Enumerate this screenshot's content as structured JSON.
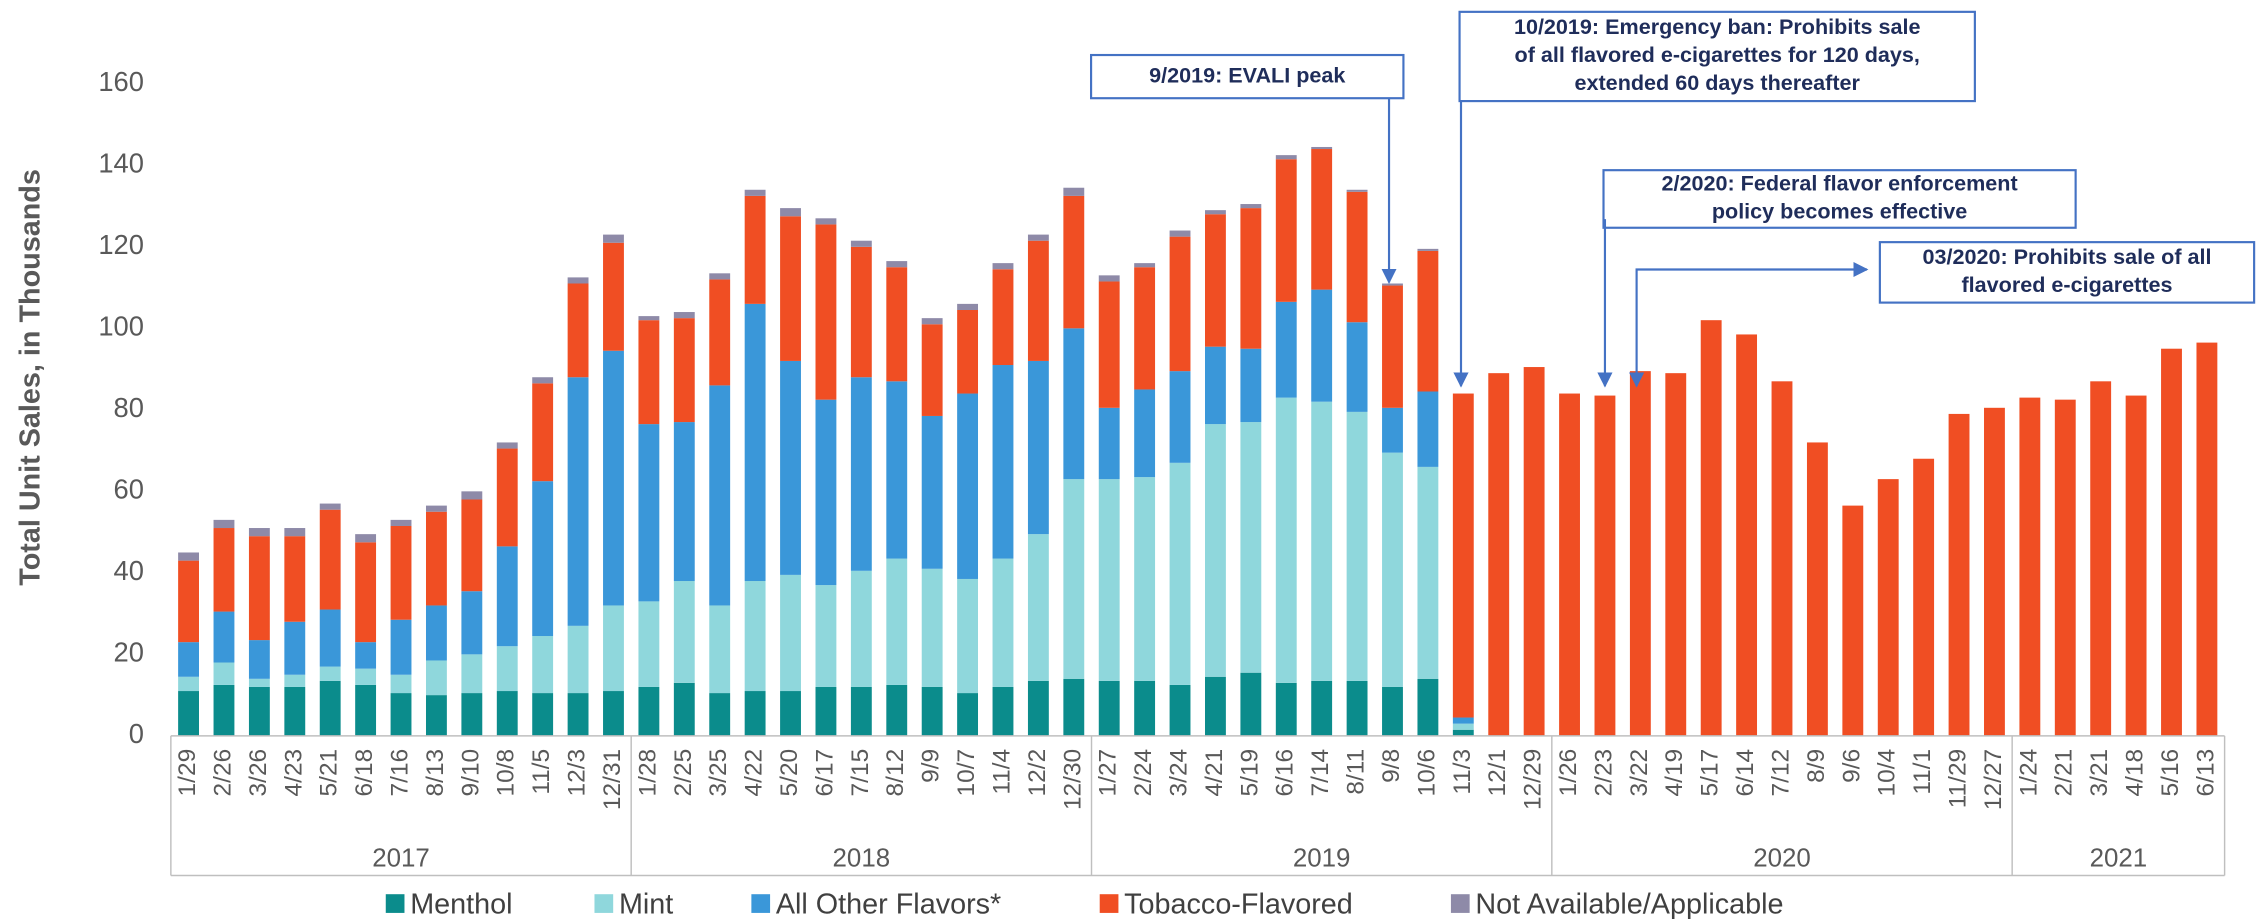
{
  "chart_data": {
    "type": "stacked_bar",
    "y_label": "Total Unit Sales, in Thousands",
    "categories": [
      "1/29",
      "2/26",
      "3/26",
      "4/23",
      "5/21",
      "6/18",
      "7/16",
      "8/13",
      "9/10",
      "10/8",
      "11/5",
      "12/3",
      "12/31",
      "1/28",
      "2/25",
      "3/25",
      "4/22",
      "5/20",
      "6/17",
      "7/15",
      "8/12",
      "9/9",
      "10/7",
      "11/4",
      "12/2",
      "12/30",
      "1/27",
      "2/24",
      "3/24",
      "4/21",
      "5/19",
      "6/16",
      "7/14",
      "8/11",
      "9/8",
      "10/6",
      "11/3",
      "12/1",
      "12/29",
      "1/26",
      "2/23",
      "3/22",
      "4/19",
      "5/17",
      "6/14",
      "7/12",
      "8/9",
      "9/6",
      "10/4",
      "11/1",
      "11/29",
      "12/27",
      "1/24",
      "2/21",
      "3/21",
      "4/18",
      "5/16",
      "6/13"
    ],
    "groups": [
      "2017",
      "2018",
      "2019",
      "2020",
      "2021"
    ],
    "series": [
      {
        "name": "Menthol",
        "color": "#0b8c8c",
        "values": [
          11,
          12.5,
          12,
          12,
          13.5,
          12.5,
          10.5,
          10,
          10.5,
          11,
          10.5,
          10.5,
          11,
          12,
          13,
          10.5,
          11,
          11,
          12,
          12,
          12.5,
          12,
          10.5,
          12,
          13.5,
          14,
          13.5,
          13.5,
          12.5,
          14.5,
          15.5,
          13,
          13.5,
          13.5,
          12,
          14,
          1.5,
          null,
          null,
          null,
          null,
          null,
          null,
          null,
          null,
          null,
          null,
          null,
          null,
          null,
          null,
          null,
          null,
          null,
          null,
          null,
          null,
          null
        ]
      },
      {
        "name": "Mint",
        "color": "#8fd7dc",
        "values": [
          3.5,
          5.5,
          2,
          3,
          3.5,
          4,
          4.5,
          8.5,
          9.5,
          11,
          14,
          16.5,
          21,
          21,
          25,
          21.5,
          27,
          28.5,
          25,
          28.5,
          31,
          29,
          28,
          31.5,
          36,
          49,
          49.5,
          50,
          54.5,
          62,
          61.5,
          70,
          68.5,
          66,
          57.5,
          52,
          1.5,
          null,
          null,
          null,
          null,
          null,
          null,
          null,
          null,
          null,
          null,
          null,
          null,
          null,
          null,
          null,
          null,
          null,
          null,
          null,
          null,
          null
        ]
      },
      {
        "name": "All Other Flavors*",
        "color": "#3a97d9",
        "values": [
          8.5,
          12.5,
          9.5,
          13,
          14,
          6.5,
          13.5,
          13.5,
          15.5,
          24.5,
          38,
          61,
          62.5,
          43.5,
          39,
          54,
          68,
          52.5,
          45.5,
          47.5,
          43.5,
          37.5,
          45.5,
          47.5,
          42.5,
          37,
          17.5,
          21.5,
          22.5,
          19,
          18,
          23.5,
          27.5,
          22,
          11,
          18.5,
          1.5,
          null,
          null,
          null,
          null,
          null,
          null,
          null,
          null,
          null,
          null,
          null,
          null,
          null,
          null,
          null,
          null,
          null,
          null,
          null,
          null,
          null
        ]
      },
      {
        "name": "Tobacco-Flavored",
        "color": "#f04e23",
        "values": [
          20,
          20.5,
          25.5,
          21,
          24.5,
          24.5,
          23,
          23,
          22.5,
          24,
          24,
          23,
          26.5,
          25.5,
          25.5,
          26,
          26.5,
          35.5,
          43,
          32,
          28,
          22.5,
          20.5,
          23.5,
          29.5,
          32.5,
          31,
          30,
          33,
          32.5,
          34.5,
          35,
          34.5,
          32,
          30,
          34.5,
          79.5,
          89,
          90.5,
          84,
          83.5,
          89.5,
          89,
          102,
          98.5,
          87,
          72,
          56.5,
          63,
          68,
          79,
          80.5,
          83,
          82.5,
          87,
          83.5,
          95,
          96.5
        ]
      },
      {
        "name": "Not Available/Applicable",
        "color": "#8e8aa8",
        "values": [
          2,
          2,
          2,
          2,
          1.5,
          2,
          1.5,
          1.5,
          2,
          1.5,
          1.5,
          1.5,
          2,
          1,
          1.5,
          1.5,
          1.5,
          2,
          1.5,
          1.5,
          1.5,
          1.5,
          1.5,
          1.5,
          1.5,
          2,
          1.5,
          1,
          1.5,
          1,
          1,
          1,
          0.5,
          0.5,
          0.5,
          0.5,
          null,
          null,
          null,
          null,
          null,
          null,
          null,
          null,
          null,
          null,
          null,
          null,
          null,
          null,
          null,
          null,
          null,
          null,
          null,
          null,
          null,
          null
        ]
      }
    ],
    "ylim": [
      0,
      160
    ],
    "yticks": [
      0,
      20,
      40,
      60,
      80,
      100,
      120,
      140,
      160
    ],
    "grid": false,
    "legend": "bottom",
    "annotations": [
      {
        "lines": [
          "9/2019: EVALI peak"
        ]
      },
      {
        "lines": [
          "10/2019: Emergency ban: Prohibits sale",
          "of all flavored e-cigarettes for 120 days,",
          "extended 60 days thereafter"
        ]
      },
      {
        "lines": [
          "2/2020: Federal flavor enforcement",
          "policy becomes effective"
        ]
      },
      {
        "lines": [
          "03/2020: Prohibits sale of all",
          "flavored e-cigarettes"
        ]
      }
    ]
  }
}
